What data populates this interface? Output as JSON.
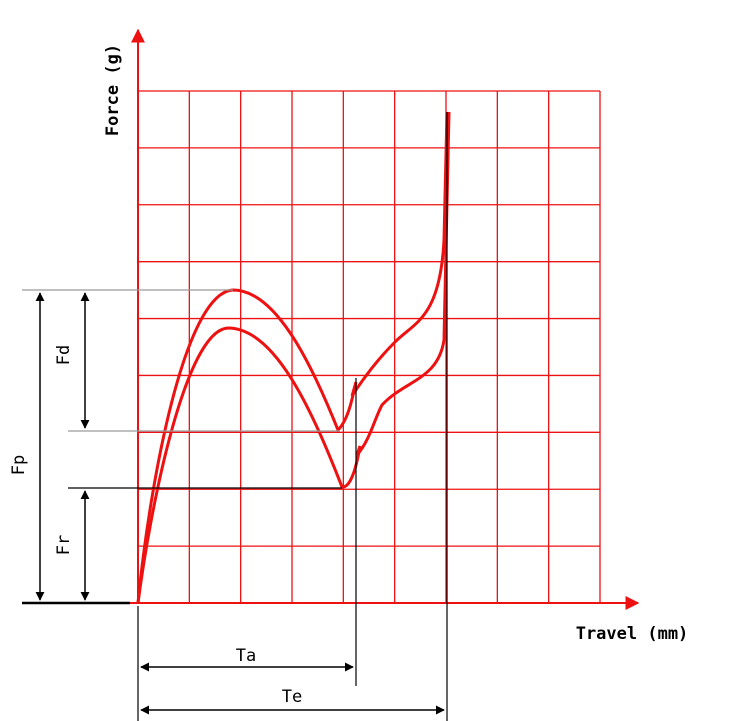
{
  "diagram": {
    "y_axis_label": "Force (g)",
    "x_axis_label": "Travel (mm)",
    "dimensions": {
      "fp": "Fp",
      "fd": "Fd",
      "fr": "Fr",
      "ta": "Ta",
      "te": "Te"
    }
  },
  "colors": {
    "grid": "#ee1111",
    "curve": "#ee1111",
    "dimension": "#000000"
  }
}
